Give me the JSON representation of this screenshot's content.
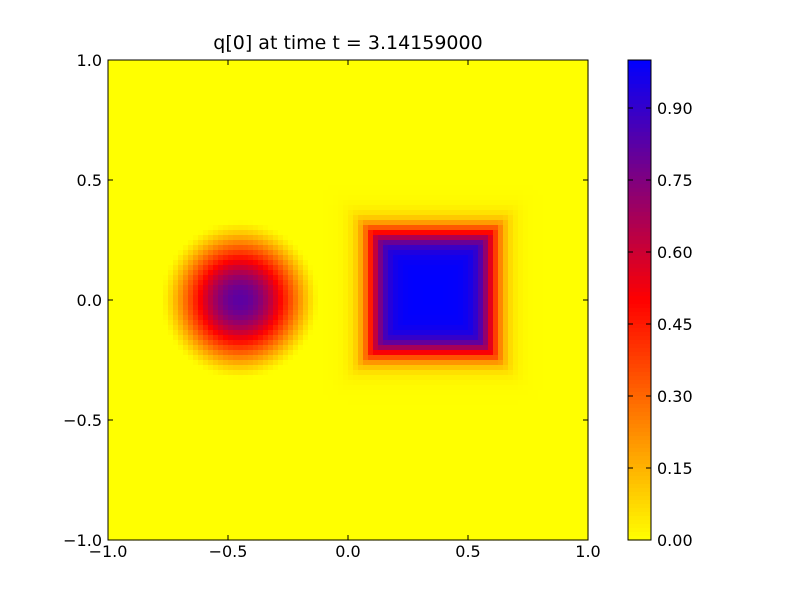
{
  "chart_data": {
    "type": "heatmap",
    "title": "q[0] at time t =     3.14159000",
    "xlabel": "",
    "ylabel": "",
    "xlim": [
      -1.0,
      1.0
    ],
    "ylim": [
      -1.0,
      1.0
    ],
    "x_ticks": [
      -1.0,
      -0.5,
      0.0,
      0.5,
      1.0
    ],
    "x_tick_labels": [
      "−1.0",
      "−0.5",
      "0.0",
      "0.5",
      "1.0"
    ],
    "y_ticks": [
      -1.0,
      -0.5,
      0.0,
      0.5,
      1.0
    ],
    "y_tick_labels": [
      "−1.0",
      "−0.5",
      "0.0",
      "0.5",
      "1.0"
    ],
    "grid": false,
    "colorbar": {
      "min": 0.0,
      "max": 1.0,
      "ticks": [
        0.0,
        0.15,
        0.3,
        0.45,
        0.6,
        0.75,
        0.9
      ],
      "tick_labels": [
        "0.00",
        "0.15",
        "0.30",
        "0.45",
        "0.60",
        "0.75",
        "0.90"
      ],
      "colormap": [
        {
          "value": 0.0,
          "color": "#ffff00"
        },
        {
          "value": 0.5,
          "color": "#ff0000"
        },
        {
          "value": 1.0,
          "color": "#0000ff"
        }
      ]
    },
    "background_value": 0.0,
    "features": [
      {
        "name": "cone",
        "shape": "circle",
        "center": [
          -0.45,
          0.0
        ],
        "radius": 0.33,
        "peak_value": 0.82
      },
      {
        "name": "square",
        "shape": "square",
        "center": [
          0.35,
          0.03
        ],
        "half_width": 0.25,
        "peak_value": 1.0
      }
    ]
  }
}
